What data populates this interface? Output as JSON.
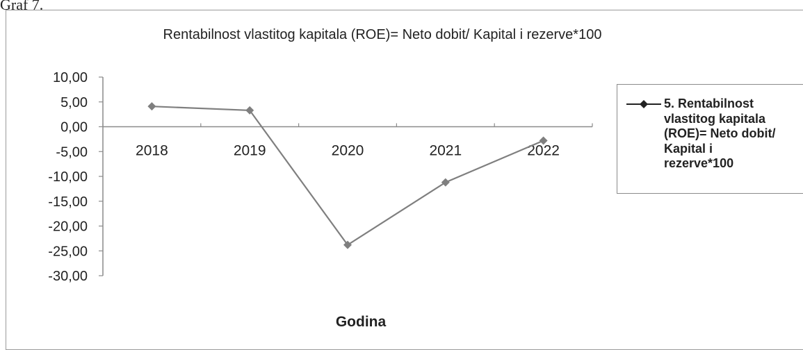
{
  "caption": "Graf 7.",
  "chart_data": {
    "type": "line",
    "title": "Rentabilnost vlastitog kapitala (ROE)= Neto dobit/ Kapital i rezerve*100",
    "xlabel": "Godina",
    "ylabel": "",
    "categories": [
      "2018",
      "2019",
      "2020",
      "2021",
      "2022"
    ],
    "series": [
      {
        "name": "5. Rentabilnost vlastitog kapitala (ROE)= Neto dobit/ Kapital i rezerve*100",
        "values": [
          4.1,
          3.3,
          -23.8,
          -11.2,
          -2.8
        ],
        "color": "#7f7f7f"
      }
    ],
    "ylim": [
      -30,
      10
    ],
    "yticks": [
      "10,00",
      "5,00",
      "0,00",
      "-5,00",
      "-10,00",
      "-15,00",
      "-20,00",
      "-25,00",
      "-30,00"
    ],
    "grid": false,
    "legend_position": "right"
  },
  "legend": {
    "text": "5. Rentabilnost\nvlastitog kapitala\n(ROE)= Neto dobit/\nKapital i\nrezerve*100"
  }
}
